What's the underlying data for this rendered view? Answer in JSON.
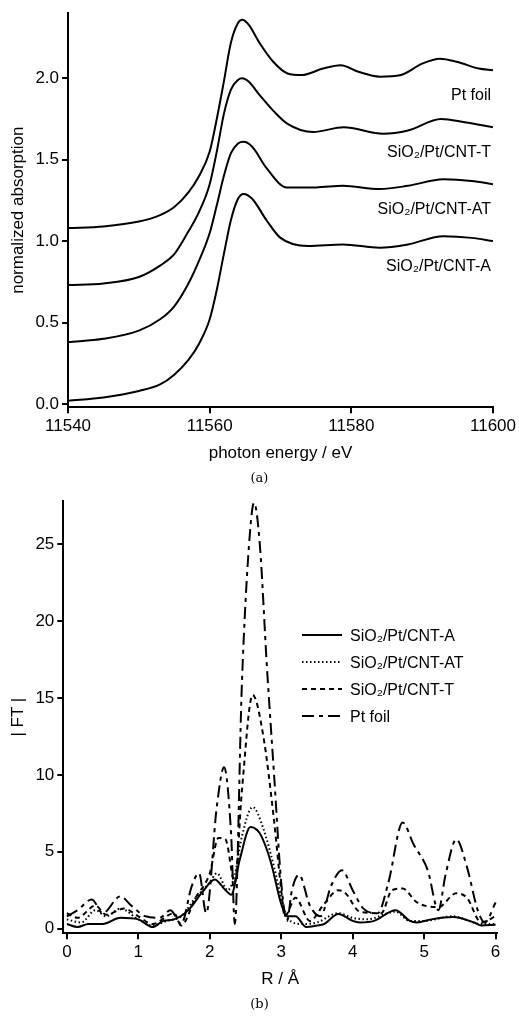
{
  "chart_data": [
    {
      "type": "line",
      "xlabel": "photon energy / eV",
      "ylabel": "normalized absorption",
      "annotations": [
        "(a)"
      ],
      "xlim": [
        11540,
        11600
      ],
      "ylim": [
        -0.02,
        2.4
      ],
      "xticks": [
        11540,
        11560,
        11580,
        11600
      ],
      "yticks": [
        {
          "value": 0,
          "label": "0.0"
        },
        {
          "value": 0.5,
          "label": "0.5"
        },
        {
          "value": 1,
          "label": "1.0"
        },
        {
          "value": 1.5,
          "label": "1.5"
        },
        {
          "value": 2,
          "label": "2.0"
        }
      ],
      "grid": false,
      "legend": false,
      "marker": "none",
      "line_style": "solid",
      "series": [
        {
          "name": "Pt foil",
          "color": "#000000",
          "x": [
            11540,
            11545,
            11550,
            11553,
            11555,
            11557,
            11558.5,
            11560,
            11561,
            11562,
            11563,
            11564,
            11564.6,
            11565.5,
            11567,
            11569,
            11571,
            11573,
            11576,
            11578.5,
            11581,
            11584,
            11587,
            11590,
            11592.5,
            11595,
            11598,
            11600
          ],
          "values": [
            1.08,
            1.09,
            1.12,
            1.16,
            1.21,
            1.3,
            1.4,
            1.55,
            1.75,
            1.98,
            2.22,
            2.34,
            2.36,
            2.33,
            2.22,
            2.1,
            2.03,
            2.02,
            2.06,
            2.08,
            2.04,
            2.01,
            2.02,
            2.09,
            2.12,
            2.1,
            2.06,
            2.05
          ]
        },
        {
          "name": "SiO₂/Pt/CNT-T",
          "color": "#000000",
          "x": [
            11540,
            11545,
            11550,
            11553,
            11555,
            11557,
            11558.5,
            11560,
            11561,
            11562,
            11563,
            11564,
            11564.6,
            11565.5,
            11567,
            11569,
            11571,
            11574.6,
            11578.9,
            11584.5,
            11588,
            11592.7,
            11596,
            11600
          ],
          "values": [
            0.73,
            0.74,
            0.78,
            0.85,
            0.92,
            1.06,
            1.18,
            1.35,
            1.55,
            1.78,
            1.93,
            1.99,
            2.0,
            1.98,
            1.9,
            1.8,
            1.72,
            1.67,
            1.7,
            1.66,
            1.68,
            1.75,
            1.73,
            1.7
          ]
        },
        {
          "name": "SiO₂/Pt/CNT-AT",
          "color": "#000000",
          "x": [
            11540,
            11545,
            11550,
            11553,
            11555,
            11557,
            11558.5,
            11560,
            11561,
            11562,
            11563,
            11564,
            11564.8,
            11566,
            11568,
            11570.9,
            11575,
            11578.8,
            11584,
            11588,
            11593,
            11597,
            11600
          ],
          "values": [
            0.38,
            0.4,
            0.45,
            0.52,
            0.6,
            0.74,
            0.88,
            1.05,
            1.22,
            1.4,
            1.54,
            1.6,
            1.61,
            1.58,
            1.45,
            1.33,
            1.33,
            1.34,
            1.32,
            1.34,
            1.38,
            1.37,
            1.35
          ]
        },
        {
          "name": "SiO₂/Pt/CNT-A",
          "color": "#000000",
          "x": [
            11540,
            11545,
            11550,
            11553,
            11555,
            11557,
            11558.5,
            11560,
            11561,
            11562,
            11563,
            11564,
            11564.8,
            11566,
            11568,
            11570,
            11573.9,
            11578.8,
            11584,
            11588,
            11593,
            11597,
            11600
          ],
          "values": [
            0.02,
            0.04,
            0.08,
            0.12,
            0.18,
            0.27,
            0.37,
            0.52,
            0.7,
            0.92,
            1.13,
            1.26,
            1.29,
            1.26,
            1.13,
            1.02,
            0.97,
            0.98,
            0.96,
            0.98,
            1.03,
            1.02,
            1.0
          ]
        }
      ]
    },
    {
      "type": "line",
      "xlabel": "R / Å",
      "ylabel": "| FT |",
      "annotations": [
        "(b)"
      ],
      "xlim": [
        -0.05,
        6.02
      ],
      "ylim": [
        -0.3,
        27.8
      ],
      "xticks": [
        0,
        1,
        2,
        3,
        4,
        5,
        6
      ],
      "yticks": [
        0,
        5,
        10,
        15,
        20,
        25
      ],
      "grid": false,
      "legend": "right",
      "marker": "none",
      "series": [
        {
          "name": "SiO₂/Pt/CNT-A",
          "color": "#000000",
          "line_style": "solid",
          "x": [
            0,
            0.15,
            0.3,
            0.5,
            0.75,
            1.0,
            1.2,
            1.35,
            1.5,
            1.7,
            1.9,
            2.07,
            2.2,
            2.3,
            2.42,
            2.57,
            2.7,
            2.85,
            3.0,
            3.08,
            3.2,
            3.35,
            3.5,
            3.6,
            3.8,
            4.0,
            4.1,
            4.3,
            4.6,
            4.8,
            4.9,
            5.1,
            5.4,
            5.7,
            5.8,
            6.0
          ],
          "values": [
            0.3,
            0.1,
            0.3,
            0.3,
            0.7,
            0.6,
            0.1,
            0.5,
            0.6,
            1.2,
            2.4,
            3.2,
            2.6,
            2.2,
            4.5,
            6.6,
            6.2,
            4.4,
            1.6,
            0.8,
            0.8,
            0.1,
            0.2,
            0.3,
            0.95,
            0.5,
            0.4,
            0.5,
            1.2,
            0.5,
            0.4,
            0.6,
            0.75,
            0.4,
            0.2,
            0.25
          ]
        },
        {
          "name": "SiO₂/Pt/CNT-AT",
          "color": "#000000",
          "line_style": "dotted",
          "x": [
            0,
            0.2,
            0.4,
            0.55,
            0.75,
            1.0,
            1.2,
            1.4,
            1.6,
            1.8,
            2.0,
            2.1,
            2.25,
            2.35,
            2.45,
            2.6,
            2.75,
            2.9,
            3.0,
            3.1,
            3.3,
            3.5,
            3.8,
            4.0,
            4.2,
            4.6,
            4.8,
            5.0,
            5.4,
            5.8,
            6.0
          ],
          "values": [
            0.6,
            0.4,
            1.2,
            0.8,
            1.3,
            0.6,
            0.2,
            0.5,
            0.8,
            2.0,
            3.0,
            3.6,
            2.5,
            3.5,
            6.0,
            7.9,
            6.5,
            4.0,
            2.0,
            0.6,
            0.3,
            0.4,
            1.0,
            0.7,
            0.6,
            1.1,
            0.5,
            0.5,
            0.8,
            0.3,
            0.3
          ]
        },
        {
          "name": "SiO₂/Pt/CNT-T",
          "color": "#000000",
          "line_style": "dashed",
          "x": [
            0,
            0.15,
            0.4,
            0.55,
            0.8,
            1.0,
            1.2,
            1.5,
            1.6,
            1.8,
            2.0,
            2.12,
            2.22,
            2.35,
            2.45,
            2.6,
            2.75,
            2.9,
            3.0,
            3.05,
            3.2,
            3.4,
            3.6,
            3.8,
            3.9,
            4.1,
            4.4,
            4.55,
            4.7,
            4.9,
            5.2,
            5.45,
            5.6,
            5.8,
            6.0
          ],
          "values": [
            1.0,
            0.7,
            1.5,
            0.9,
            1.3,
            0.8,
            0.3,
            1.0,
            0.2,
            2.0,
            3.6,
            5.9,
            5.8,
            3.0,
            9.0,
            15.2,
            12.5,
            7.0,
            2.5,
            0.8,
            2.0,
            0.5,
            1.6,
            2.5,
            2.3,
            1.1,
            1.0,
            2.5,
            2.6,
            1.7,
            1.4,
            2.3,
            2.0,
            0.4,
            0.8
          ]
        },
        {
          "name": "Pt foil",
          "color": "#000000",
          "line_style": "dashdot",
          "x": [
            0,
            0.15,
            0.35,
            0.5,
            0.75,
            0.9,
            1.1,
            1.3,
            1.45,
            1.6,
            1.75,
            1.85,
            1.95,
            2.1,
            2.2,
            2.3,
            2.35,
            2.45,
            2.55,
            2.62,
            2.7,
            2.8,
            2.9,
            3.0,
            3.08,
            3.15,
            3.25,
            3.4,
            3.55,
            3.7,
            3.85,
            4.0,
            4.15,
            4.35,
            4.5,
            4.7,
            4.85,
            5.05,
            5.2,
            5.3,
            5.45,
            5.6,
            5.75,
            5.85,
            6.0
          ],
          "values": [
            0.8,
            1.2,
            1.9,
            1.0,
            2.1,
            1.5,
            0.8,
            0.7,
            1.2,
            0.3,
            2.8,
            3.6,
            1.0,
            8.0,
            10.5,
            6.0,
            0.3,
            16.0,
            25.0,
            27.7,
            25.0,
            17.0,
            10.0,
            3.0,
            0.5,
            2.5,
            3.5,
            1.5,
            0.8,
            2.8,
            3.8,
            2.5,
            1.3,
            1.0,
            3.0,
            6.9,
            5.5,
            3.8,
            1.2,
            3.5,
            5.8,
            4.0,
            1.2,
            0.4,
            1.7
          ]
        }
      ]
    }
  ]
}
